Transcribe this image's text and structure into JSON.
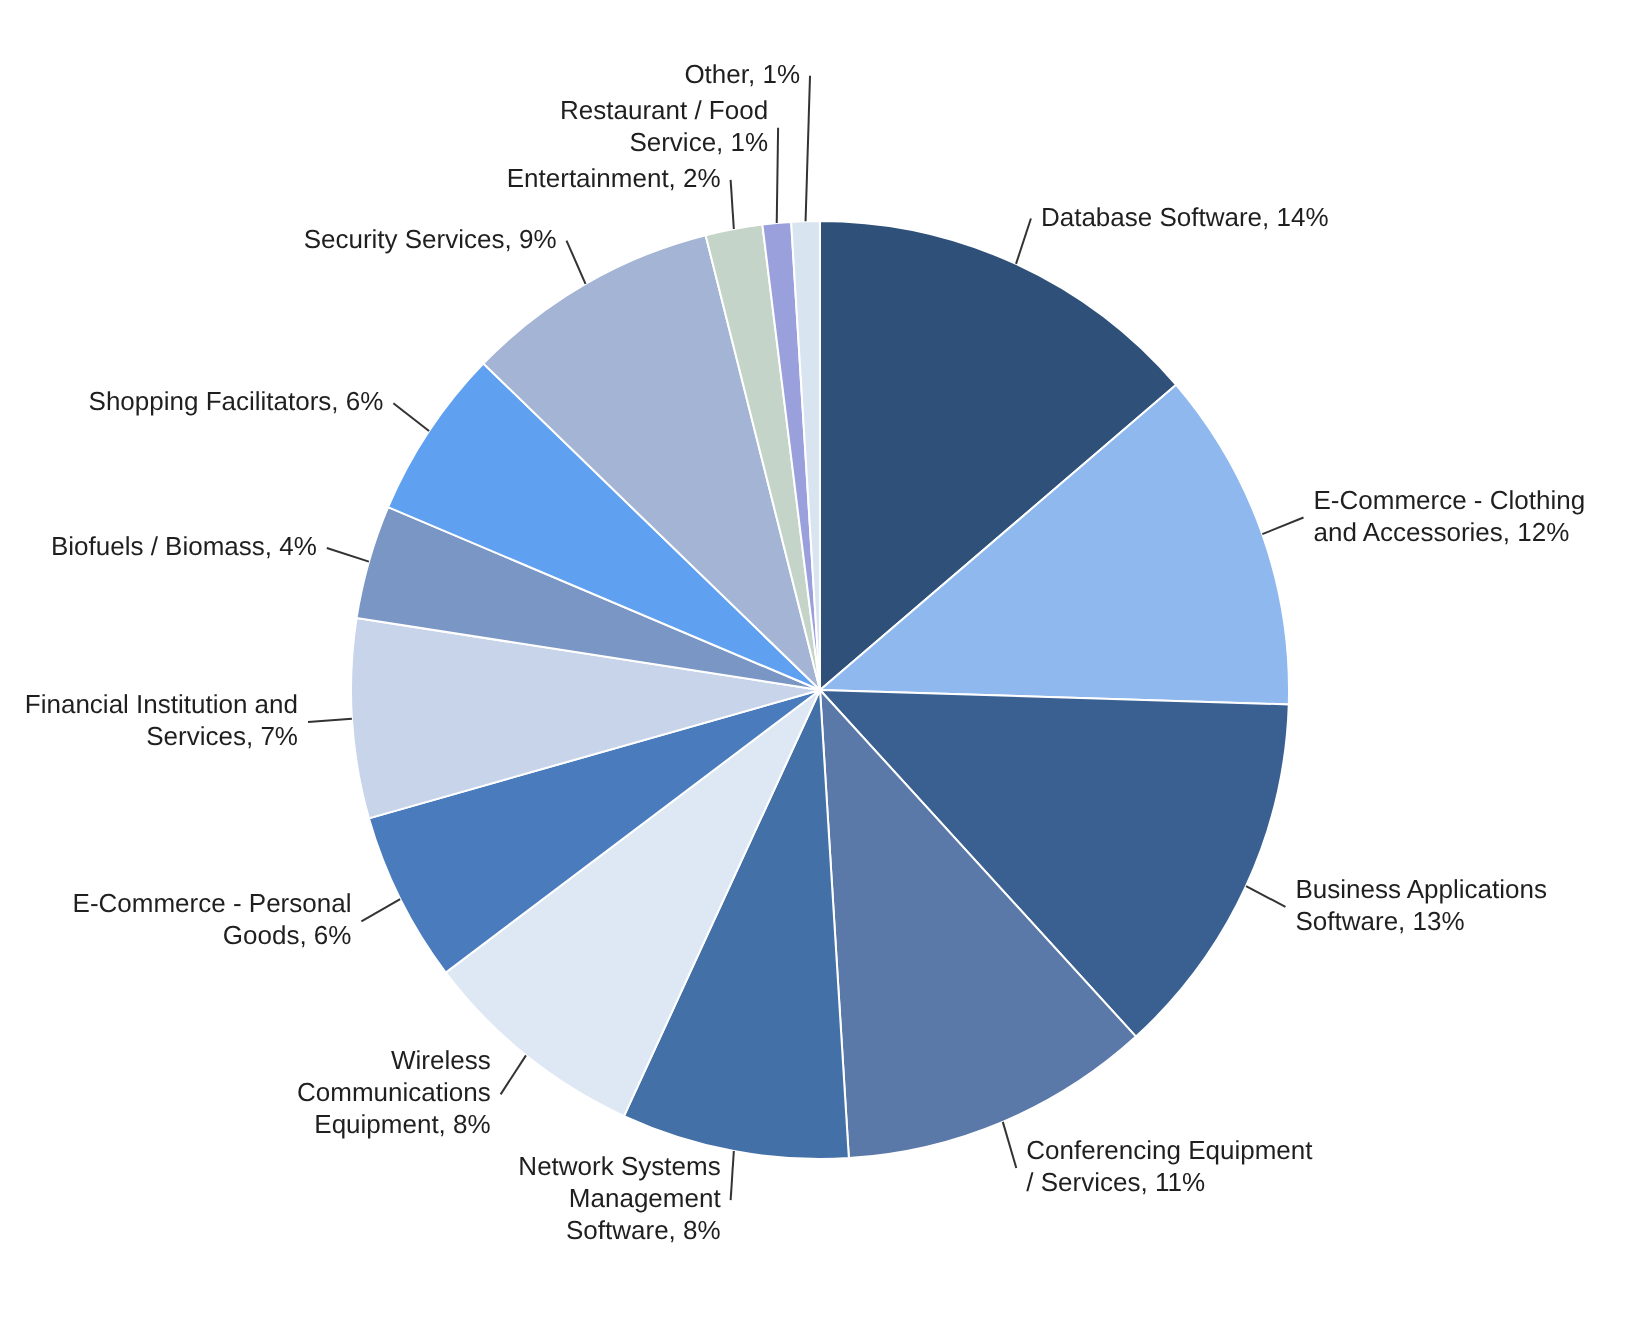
{
  "chart_data": {
    "type": "pie",
    "categories": [
      "Database Software",
      "E-Commerce  - Clothing and Accessories",
      "Business Applications Software",
      "Conferencing Equipment / Services",
      "Network Systems Management Software",
      "Wireless Communications Equipment",
      "E-Commerce  - Personal Goods",
      "Financial Institution and Services",
      "Biofuels / Biomass",
      "Shopping Facilitators",
      "Security Services",
      "Entertainment",
      "Restaurant / Food Service",
      "Other"
    ],
    "values": [
      14,
      12,
      13,
      11,
      8,
      8,
      6,
      7,
      4,
      6,
      9,
      2,
      1,
      1
    ],
    "value_labels": [
      "14%",
      "12%",
      "13%",
      "11%",
      "8%",
      "8%",
      "6%",
      "7%",
      "4%",
      "6%",
      "9%",
      "2%",
      "1%",
      "1%"
    ],
    "colors": [
      "#2f5078",
      "#8fb8ee",
      "#3a6092",
      "#5a78a8",
      "#4470a8",
      "#dde8f4",
      "#4a7bbd",
      "#c8d4ea",
      "#7a96c4",
      "#5fa0f0",
      "#a4b4d4",
      "#c4d4c8",
      "#9aa0dc",
      "#d8e4f0"
    ],
    "legend": false
  }
}
